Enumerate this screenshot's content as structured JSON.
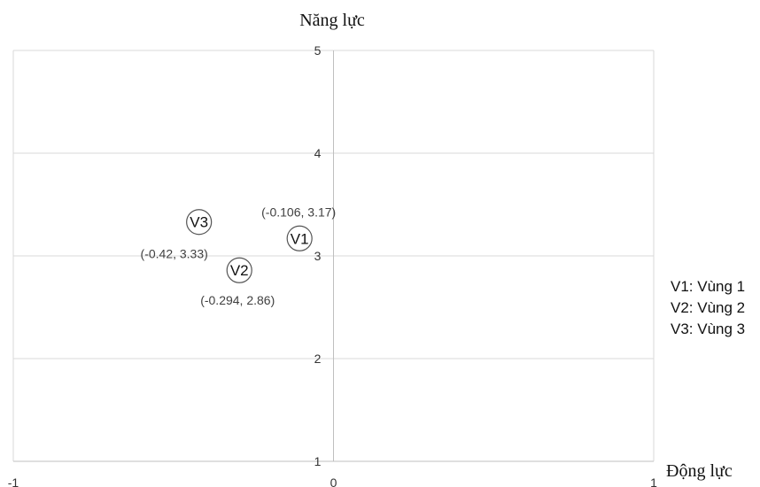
{
  "chart_data": {
    "type": "scatter",
    "xlabel": "Động lực",
    "ylabel": "Năng lực",
    "xlim": [
      -1,
      1
    ],
    "ylim": [
      1,
      5
    ],
    "x_ticks": [
      "-1",
      "0",
      "1"
    ],
    "y_ticks": [
      "1",
      "2",
      "3",
      "4",
      "5"
    ],
    "grid": true,
    "points": [
      {
        "name": "V1",
        "x": -0.106,
        "y": 3.17,
        "label": "(-0.106, 3.17)"
      },
      {
        "name": "V2",
        "x": -0.294,
        "y": 2.86,
        "label": "(-0.294, 2.86)"
      },
      {
        "name": "V3",
        "x": -0.42,
        "y": 3.33,
        "label": "(-0.42, 3.33)"
      }
    ],
    "legend_position": "right",
    "legend": [
      "V1: Vùng 1",
      "V2: Vùng 2",
      "V3: Vùng 3"
    ]
  }
}
